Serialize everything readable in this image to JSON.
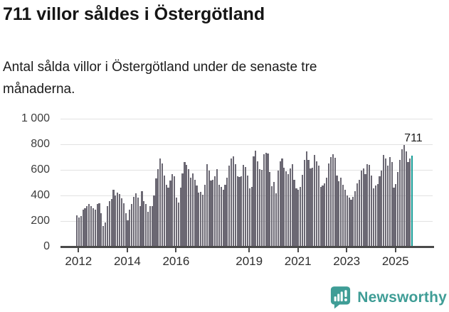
{
  "header": {
    "title": "711 villor såldes i Östergötland",
    "subtitle": "Antal sålda villor i Östergötland under de senaste tre månaderna."
  },
  "chart_data": {
    "type": "bar",
    "title": "711 villor såldes i Östergötland",
    "xlabel": "",
    "ylabel": "",
    "unit": "sålda villor (rullande 3 månader)",
    "x_start": "2011-12",
    "x_end": "2025-09",
    "frequency": "monthly",
    "ylim": [
      0,
      1000
    ],
    "grid": true,
    "y_ticks": [
      0,
      200,
      400,
      600,
      800,
      1000
    ],
    "y_tick_labels": [
      "0",
      "200",
      "400",
      "600",
      "800",
      "1 000"
    ],
    "x_ticks": [
      2012,
      2014,
      2016,
      2019,
      2021,
      2023,
      2025
    ],
    "values": [
      243,
      228,
      237,
      289,
      302,
      317,
      331,
      317,
      298,
      289,
      331,
      339,
      261,
      161,
      187,
      317,
      354,
      372,
      443,
      400,
      424,
      413,
      380,
      340,
      260,
      206,
      289,
      331,
      391,
      419,
      381,
      317,
      431,
      354,
      331,
      270,
      317,
      317,
      400,
      533,
      604,
      690,
      650,
      557,
      483,
      459,
      517,
      567,
      548,
      381,
      345,
      460,
      575,
      660,
      640,
      605,
      540,
      575,
      520,
      480,
      420,
      430,
      406,
      483,
      646,
      594,
      517,
      524,
      548,
      604,
      483,
      465,
      446,
      483,
      539,
      632,
      687,
      706,
      646,
      548,
      543,
      548,
      641,
      622,
      557,
      456,
      469,
      706,
      752,
      669,
      604,
      598,
      724,
      733,
      728,
      585,
      474,
      506,
      419,
      594,
      669,
      687,
      617,
      589,
      567,
      613,
      646,
      524,
      456,
      443,
      465,
      561,
      678,
      743,
      678,
      609,
      617,
      715,
      669,
      632,
      465,
      480,
      493,
      539,
      650,
      702,
      722,
      696,
      557,
      511,
      539,
      483,
      443,
      400,
      381,
      368,
      391,
      431,
      493,
      524,
      594,
      609,
      567,
      646,
      641,
      557,
      456,
      480,
      487,
      548,
      594,
      715,
      687,
      635,
      702,
      659,
      460,
      490,
      582,
      678,
      761,
      793,
      743,
      663,
      691,
      711
    ],
    "highlight_last": true,
    "last_value_label": "711",
    "colors": {
      "bar": "#6b6873",
      "highlight": "#169c96",
      "gridline": "#e2e2e2",
      "axis": "#4a4a4a",
      "text": "#1a1a1a"
    }
  },
  "footer": {
    "brand": "Newsworthy",
    "brand_color": "#3f9d96"
  }
}
